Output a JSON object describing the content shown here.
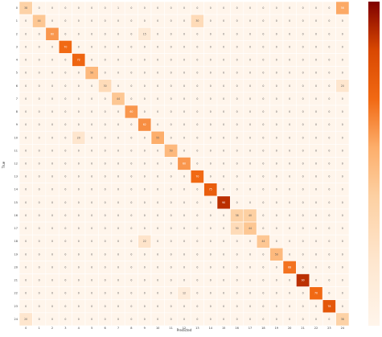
{
  "chart_data": {
    "type": "heatmap",
    "title": "",
    "xlabel": "Predicted",
    "ylabel": "True",
    "x_tick_labels": [
      "0",
      "1",
      "2",
      "3",
      "4",
      "5",
      "6",
      "7",
      "8",
      "9",
      "10",
      "11",
      "12",
      "13",
      "14",
      "15",
      "16",
      "17",
      "18",
      "19",
      "20",
      "21",
      "22",
      "23",
      "24"
    ],
    "y_tick_labels": [
      "0",
      "1",
      "2",
      "3",
      "4",
      "5",
      "6",
      "7",
      "8",
      "9",
      "10",
      "11",
      "12",
      "13",
      "14",
      "15",
      "16",
      "17",
      "18",
      "19",
      "20",
      "21",
      "22",
      "23",
      "24"
    ],
    "colormap": "YlOrRd-like",
    "colors": {
      "low": "#fff5eb",
      "mid": "#fdae6b",
      "high": "#7f0000",
      "grid": "#ffffff"
    },
    "value_range": [
      0,
      100
    ],
    "colorbar_ticks": [],
    "matrix": [
      [
        38,
        0,
        0,
        0,
        0,
        0,
        0,
        1,
        0,
        0,
        0,
        0,
        0,
        0,
        0,
        0,
        0,
        0,
        0,
        0,
        0,
        0,
        0,
        0,
        56
      ],
      [
        0,
        44,
        0,
        0,
        0,
        0,
        0,
        0,
        0,
        0,
        0,
        0,
        0,
        30,
        0,
        0,
        0,
        0,
        0,
        0,
        0,
        0,
        0,
        0,
        0
      ],
      [
        0,
        0,
        60,
        0,
        0,
        0,
        0,
        0,
        0,
        15,
        0,
        0,
        0,
        0,
        0,
        0,
        0,
        0,
        0,
        0,
        0,
        0,
        0,
        0,
        0
      ],
      [
        0,
        0,
        0,
        70,
        0,
        0,
        0,
        0,
        0,
        0,
        0,
        0,
        0,
        0,
        0,
        0,
        0,
        0,
        0,
        0,
        0,
        0,
        0,
        0,
        0
      ],
      [
        0,
        0,
        0,
        0,
        72,
        0,
        0,
        0,
        0,
        0,
        0,
        0,
        0,
        0,
        0,
        0,
        0,
        0,
        0,
        0,
        0,
        0,
        0,
        0,
        0
      ],
      [
        0,
        0,
        0,
        0,
        0,
        50,
        0,
        0,
        0,
        0,
        0,
        0,
        0,
        0,
        0,
        0,
        0,
        0,
        0,
        0,
        0,
        0,
        0,
        0,
        0
      ],
      [
        0,
        0,
        0,
        0,
        0,
        0,
        30,
        0,
        0,
        0,
        0,
        0,
        0,
        0,
        0,
        0,
        0,
        0,
        0,
        0,
        0,
        0,
        0,
        0,
        20
      ],
      [
        0,
        0,
        0,
        0,
        0,
        0,
        0,
        44,
        0,
        0,
        0,
        0,
        0,
        0,
        0,
        0,
        0,
        0,
        0,
        0,
        0,
        0,
        0,
        0,
        0
      ],
      [
        0,
        0,
        0,
        0,
        0,
        0,
        0,
        0,
        60,
        0,
        0,
        0,
        0,
        0,
        0,
        0,
        0,
        0,
        0,
        0,
        0,
        0,
        0,
        0,
        0
      ],
      [
        0,
        0,
        0,
        0,
        0,
        0,
        0,
        0,
        0,
        62,
        0,
        0,
        0,
        0,
        0,
        0,
        0,
        0,
        0,
        0,
        0,
        0,
        0,
        0,
        0
      ],
      [
        0,
        0,
        0,
        0,
        20,
        0,
        0,
        0,
        0,
        0,
        55,
        0,
        0,
        0,
        0,
        0,
        0,
        0,
        0,
        0,
        0,
        0,
        0,
        0,
        0
      ],
      [
        0,
        0,
        0,
        0,
        0,
        0,
        0,
        0,
        0,
        0,
        0,
        50,
        0,
        0,
        0,
        0,
        0,
        0,
        0,
        0,
        0,
        0,
        0,
        0,
        0
      ],
      [
        0,
        0,
        0,
        0,
        0,
        0,
        0,
        0,
        0,
        0,
        0,
        0,
        60,
        0,
        0,
        0,
        0,
        0,
        0,
        0,
        0,
        0,
        0,
        0,
        0
      ],
      [
        0,
        0,
        0,
        0,
        0,
        0,
        0,
        0,
        0,
        0,
        0,
        0,
        0,
        70,
        0,
        0,
        0,
        0,
        0,
        0,
        0,
        0,
        0,
        0,
        0
      ],
      [
        0,
        0,
        0,
        0,
        0,
        0,
        0,
        0,
        0,
        0,
        0,
        0,
        0,
        0,
        75,
        0,
        0,
        0,
        0,
        0,
        0,
        0,
        0,
        0,
        0
      ],
      [
        0,
        0,
        0,
        0,
        0,
        0,
        0,
        0,
        0,
        0,
        0,
        0,
        0,
        0,
        0,
        90,
        0,
        0,
        0,
        0,
        0,
        0,
        0,
        0,
        0
      ],
      [
        0,
        0,
        0,
        0,
        0,
        0,
        0,
        0,
        0,
        0,
        0,
        0,
        0,
        0,
        0,
        0,
        38,
        40,
        0,
        0,
        0,
        0,
        0,
        0,
        0
      ],
      [
        0,
        0,
        0,
        0,
        0,
        0,
        0,
        0,
        0,
        0,
        0,
        0,
        0,
        0,
        0,
        0,
        30,
        44,
        0,
        0,
        0,
        0,
        0,
        0,
        0
      ],
      [
        0,
        0,
        0,
        0,
        0,
        0,
        0,
        0,
        0,
        22,
        0,
        0,
        0,
        0,
        0,
        0,
        0,
        0,
        44,
        0,
        0,
        0,
        0,
        0,
        0
      ],
      [
        0,
        0,
        0,
        0,
        0,
        0,
        0,
        0,
        0,
        0,
        0,
        0,
        0,
        0,
        0,
        0,
        0,
        0,
        0,
        50,
        0,
        0,
        0,
        0,
        0
      ],
      [
        0,
        0,
        0,
        0,
        0,
        0,
        0,
        0,
        0,
        0,
        0,
        0,
        0,
        0,
        0,
        0,
        0,
        0,
        0,
        0,
        68,
        0,
        0,
        0,
        0
      ],
      [
        0,
        0,
        0,
        0,
        0,
        0,
        0,
        0,
        0,
        0,
        0,
        0,
        0,
        0,
        0,
        0,
        0,
        0,
        0,
        0,
        0,
        90,
        0,
        0,
        0
      ],
      [
        0,
        0,
        0,
        0,
        0,
        0,
        0,
        0,
        0,
        0,
        0,
        0,
        12,
        0,
        0,
        0,
        0,
        0,
        0,
        0,
        0,
        0,
        70,
        0,
        0
      ],
      [
        0,
        0,
        0,
        0,
        0,
        0,
        0,
        0,
        0,
        0,
        0,
        0,
        0,
        0,
        0,
        0,
        0,
        0,
        0,
        0,
        0,
        0,
        0,
        78,
        0
      ],
      [
        20,
        0,
        0,
        0,
        0,
        0,
        0,
        0,
        0,
        0,
        0,
        0,
        0,
        0,
        0,
        0,
        0,
        0,
        0,
        0,
        0,
        0,
        0,
        0,
        38
      ]
    ]
  }
}
